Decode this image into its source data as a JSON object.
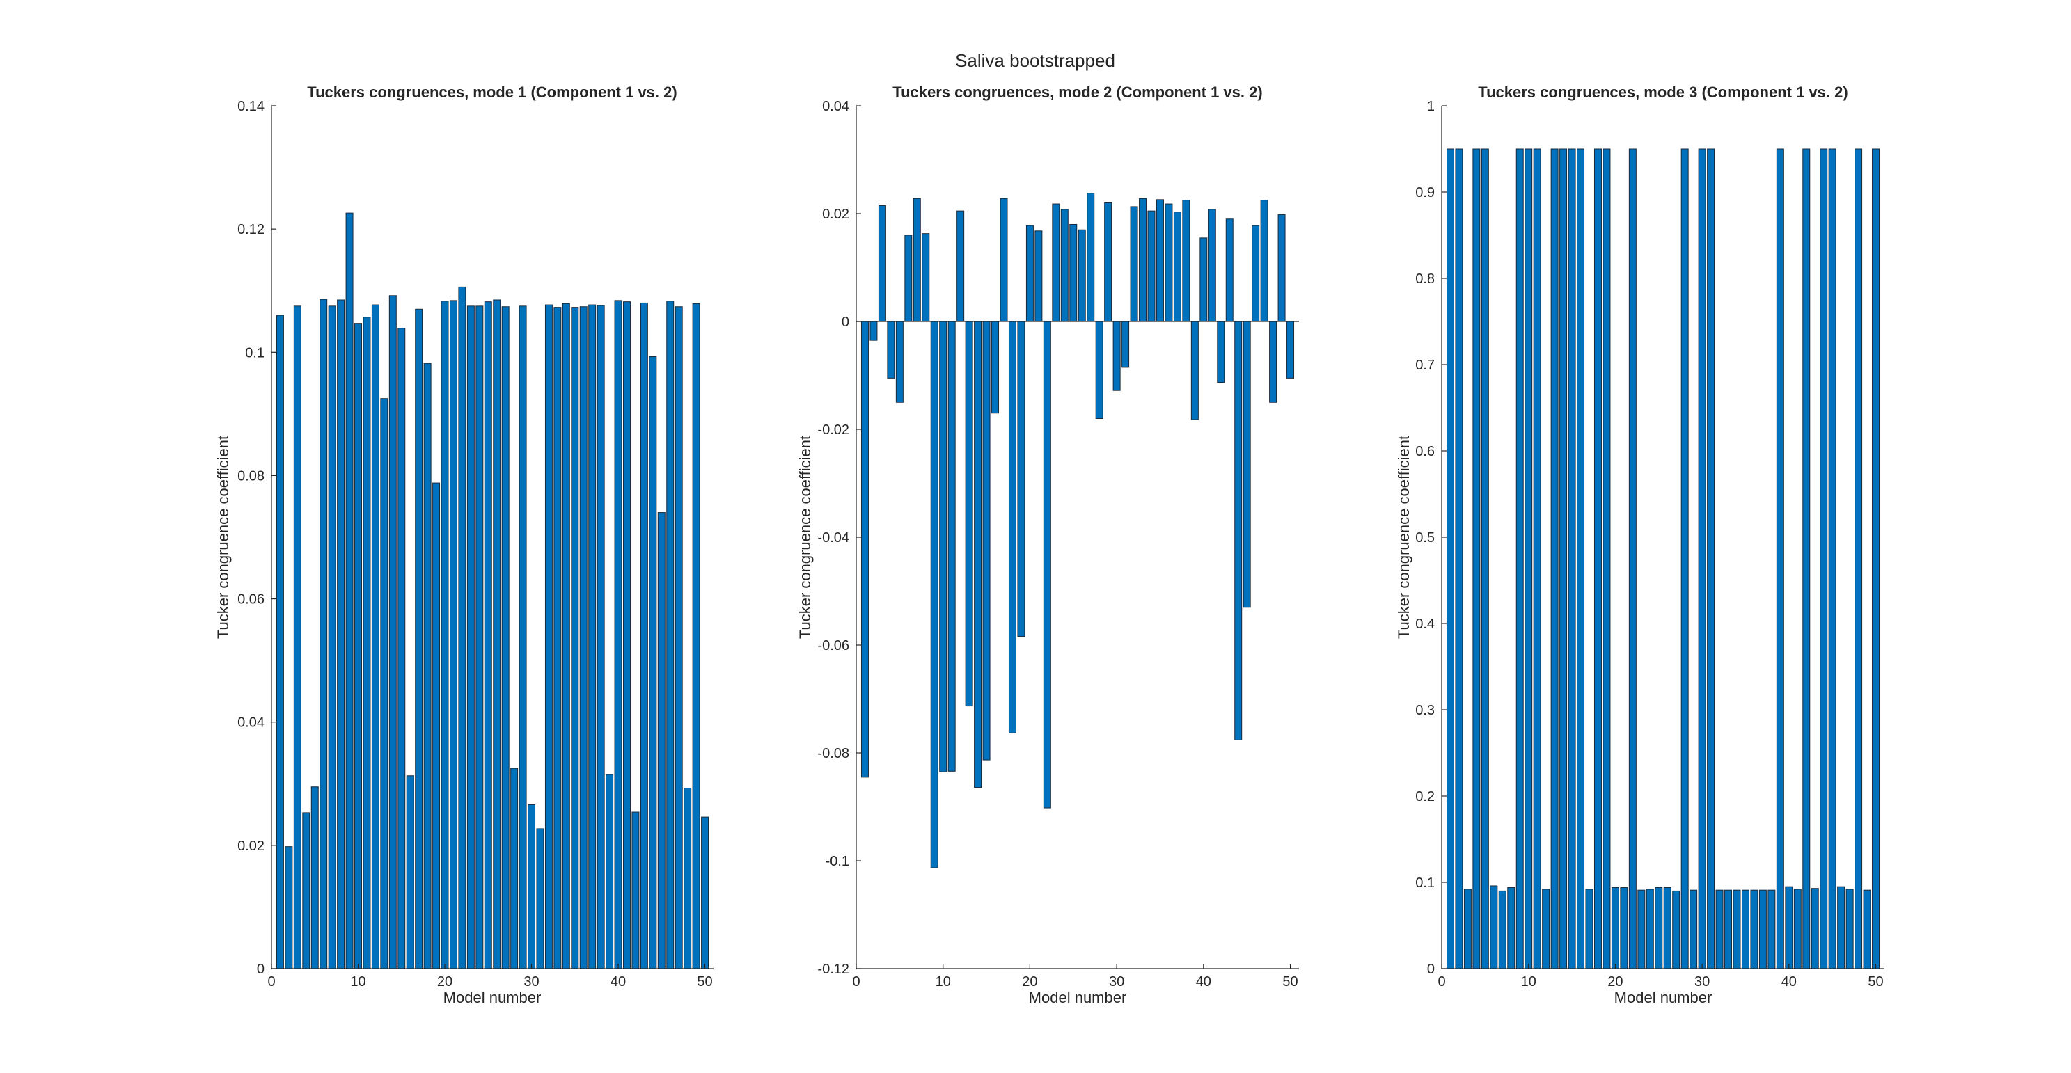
{
  "figure": {
    "title": "Saliva bootstrapped",
    "bar_color": "#0072BD",
    "bar_edge": "#1a2a3a",
    "axis_color": "#262626"
  },
  "chart_data": [
    {
      "type": "bar",
      "title": "Tuckers congruences, mode 1 (Component 1 vs. 2)",
      "xlabel": "Model number",
      "ylabel": "Tucker congruence coefficient",
      "xlim": [
        0,
        51
      ],
      "ylim": [
        0,
        0.14
      ],
      "xticks": [
        "0",
        "10",
        "20",
        "30",
        "40",
        "50"
      ],
      "yticks": [
        "0",
        "0.02",
        "0.04",
        "0.06",
        "0.08",
        "0.1",
        "0.12",
        "0.14"
      ],
      "x": [
        1,
        2,
        3,
        4,
        5,
        6,
        7,
        8,
        9,
        10,
        11,
        12,
        13,
        14,
        15,
        16,
        17,
        18,
        19,
        20,
        21,
        22,
        23,
        24,
        25,
        26,
        27,
        28,
        29,
        30,
        31,
        32,
        33,
        34,
        35,
        36,
        37,
        38,
        39,
        40,
        41,
        42,
        43,
        44,
        45,
        46,
        47,
        48,
        49,
        50
      ],
      "values": [
        0.106,
        0.0198,
        0.1075,
        0.0253,
        0.0295,
        0.1086,
        0.1075,
        0.1085,
        0.1226,
        0.1047,
        0.1057,
        0.1077,
        0.0925,
        0.1092,
        0.1039,
        0.0313,
        0.107,
        0.0982,
        0.0788,
        0.1083,
        0.1084,
        0.1106,
        0.1075,
        0.1075,
        0.1082,
        0.1085,
        0.1074,
        0.0325,
        0.1075,
        0.0266,
        0.0227,
        0.1077,
        0.1073,
        0.1079,
        0.1073,
        0.1074,
        0.1077,
        0.1076,
        0.0315,
        0.1084,
        0.1082,
        0.0254,
        0.108,
        0.0993,
        0.074,
        0.1083,
        0.1074,
        0.0293,
        0.1079,
        0.0246
      ]
    },
    {
      "type": "bar",
      "title": "Tuckers congruences, mode 2 (Component 1 vs. 2)",
      "xlabel": "Model number",
      "ylabel": "Tucker congruence coefficient",
      "xlim": [
        0,
        51
      ],
      "ylim": [
        -0.12,
        0.04
      ],
      "xticks": [
        "0",
        "10",
        "20",
        "30",
        "40",
        "50"
      ],
      "yticks": [
        "-0.12",
        "-0.1",
        "-0.08",
        "-0.06",
        "-0.04",
        "-0.02",
        "0",
        "0.02",
        "0.04"
      ],
      "x": [
        1,
        2,
        3,
        4,
        5,
        6,
        7,
        8,
        9,
        10,
        11,
        12,
        13,
        14,
        15,
        16,
        17,
        18,
        19,
        20,
        21,
        22,
        23,
        24,
        25,
        26,
        27,
        28,
        29,
        30,
        31,
        32,
        33,
        34,
        35,
        36,
        37,
        38,
        39,
        40,
        41,
        42,
        43,
        44,
        45,
        46,
        47,
        48,
        49,
        50
      ],
      "values": [
        -0.0845,
        -0.0035,
        0.0215,
        -0.0105,
        -0.015,
        0.016,
        0.0228,
        0.0163,
        -0.1013,
        -0.0835,
        -0.0834,
        0.0205,
        -0.0713,
        -0.0864,
        -0.0813,
        -0.017,
        0.0228,
        -0.0763,
        -0.0584,
        0.0178,
        0.0168,
        -0.0902,
        0.0218,
        0.0208,
        0.018,
        0.017,
        0.0238,
        -0.018,
        0.022,
        -0.0128,
        -0.0085,
        0.0213,
        0.0228,
        0.0205,
        0.0226,
        0.0218,
        0.0203,
        0.0225,
        -0.0182,
        0.0155,
        0.0208,
        -0.0113,
        0.019,
        -0.0776,
        -0.053,
        0.0178,
        0.0225,
        -0.015,
        0.0198,
        -0.0105
      ]
    },
    {
      "type": "bar",
      "title": "Tuckers congruences, mode 3 (Component 1 vs. 2)",
      "xlabel": "Model number",
      "ylabel": "Tucker congruence coefficient",
      "xlim": [
        0,
        51
      ],
      "ylim": [
        0,
        1
      ],
      "xticks": [
        "0",
        "10",
        "20",
        "30",
        "40",
        "50"
      ],
      "yticks": [
        "0",
        "0.1",
        "0.2",
        "0.3",
        "0.4",
        "0.5",
        "0.6",
        "0.7",
        "0.8",
        "0.9",
        "1"
      ],
      "x": [
        1,
        2,
        3,
        4,
        5,
        6,
        7,
        8,
        9,
        10,
        11,
        12,
        13,
        14,
        15,
        16,
        17,
        18,
        19,
        20,
        21,
        22,
        23,
        24,
        25,
        26,
        27,
        28,
        29,
        30,
        31,
        32,
        33,
        34,
        35,
        36,
        37,
        38,
        39,
        40,
        41,
        42,
        43,
        44,
        45,
        46,
        47,
        48,
        49,
        50
      ],
      "values": [
        0.95,
        0.95,
        0.092,
        0.95,
        0.95,
        0.096,
        0.09,
        0.094,
        0.95,
        0.95,
        0.95,
        0.092,
        0.95,
        0.95,
        0.95,
        0.95,
        0.092,
        0.95,
        0.95,
        0.094,
        0.094,
        0.95,
        0.091,
        0.092,
        0.094,
        0.094,
        0.09,
        0.95,
        0.091,
        0.95,
        0.95,
        0.091,
        0.091,
        0.091,
        0.091,
        0.091,
        0.091,
        0.091,
        0.95,
        0.095,
        0.092,
        0.95,
        0.093,
        0.95,
        0.95,
        0.095,
        0.092,
        0.95,
        0.091,
        0.95
      ]
    }
  ]
}
